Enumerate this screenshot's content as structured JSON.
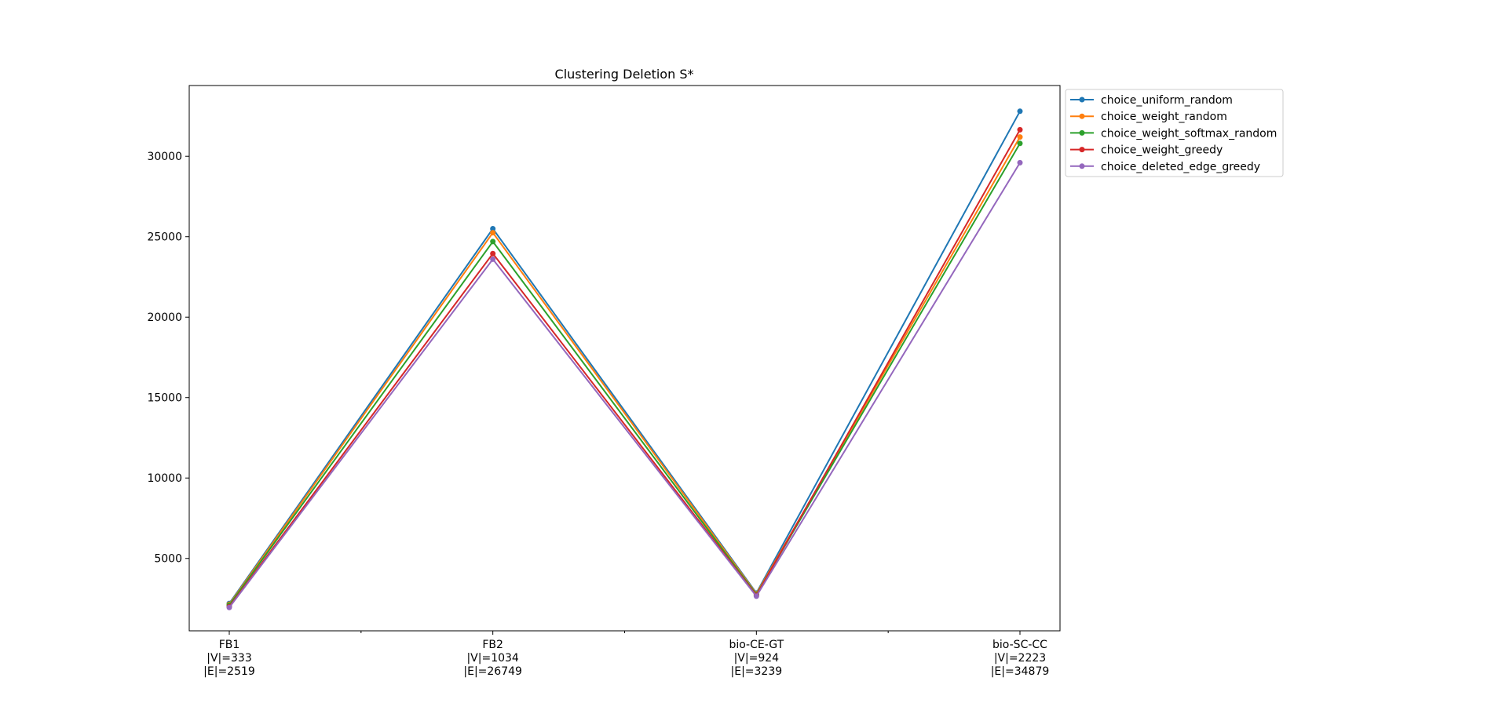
{
  "chart_data": {
    "type": "line",
    "title": "Clustering Deletion S*",
    "xlabel": "",
    "ylabel": "",
    "categories": [
      [
        "FB1",
        "|V|=333",
        "|E|=2519"
      ],
      [
        "FB2",
        "|V|=1034",
        "|E|=26749"
      ],
      [
        "bio-CE-GT",
        "|V|=924",
        "|E|=3239"
      ],
      [
        "bio-SC-CC",
        "|V|=2223",
        "|E|=34879"
      ]
    ],
    "yticks": [
      5000,
      10000,
      15000,
      20000,
      25000,
      30000
    ],
    "ylim": [
      500,
      34400
    ],
    "grid": false,
    "legend_position": "outside-top-right",
    "series": [
      {
        "name": "choice_uniform_random",
        "color": "#1f77b4",
        "values": [
          2200,
          25500,
          2850,
          32800
        ]
      },
      {
        "name": "choice_weight_random",
        "color": "#ff7f0e",
        "values": [
          2150,
          25250,
          2800,
          31200
        ]
      },
      {
        "name": "choice_weight_softmax_random",
        "color": "#2ca02c",
        "values": [
          2100,
          24700,
          2750,
          30800
        ]
      },
      {
        "name": "choice_weight_greedy",
        "color": "#d62728",
        "values": [
          2000,
          23950,
          2700,
          31650
        ]
      },
      {
        "name": "choice_deleted_edge_greedy",
        "color": "#9467bd",
        "values": [
          1950,
          23600,
          2650,
          29600
        ]
      }
    ]
  }
}
